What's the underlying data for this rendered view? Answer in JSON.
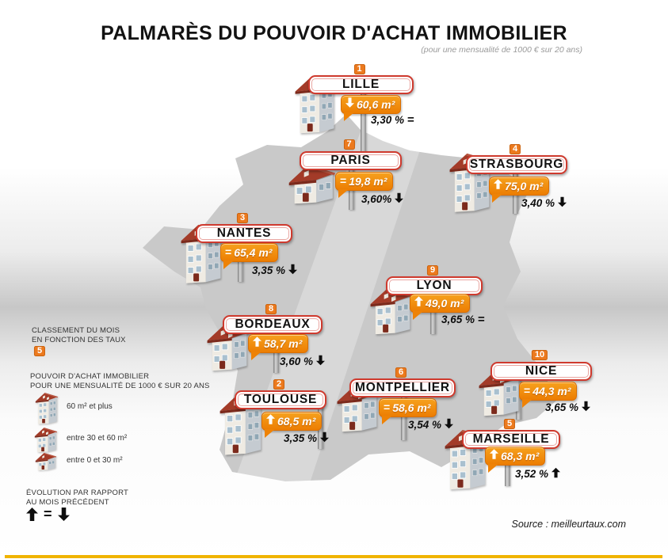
{
  "title": "PALMARÈS DU POUVOIR D'ACHAT IMMOBILIER",
  "subtitle": "(pour une mensualité de 1000 € sur 20 ans)",
  "source": "Source : meilleurtaux.com",
  "colors": {
    "accent_orange": "#ec7a1e",
    "sign_border_red": "#cf3a2e",
    "map_gray": "#c9c9c9",
    "bottom_bar_yellow": "#f0b400"
  },
  "legend": {
    "ranking_title_line1": "CLASSEMENT DU MOIS",
    "ranking_title_line2": "EN FONCTION DES TAUX",
    "ranking_badge": "5",
    "power_title_line1": "POUVOIR D'ACHAT IMMOBILIER",
    "power_title_line2": "POUR UNE MENSUALITÉ DE 1000 € SUR 20 ANS",
    "houses": [
      {
        "size": "large",
        "label": "60 m² et plus"
      },
      {
        "size": "medium",
        "label": "entre 30 et 60 m²"
      },
      {
        "size": "small",
        "label": "entre 0 et 30 m²"
      }
    ],
    "evolution_title_line1": "ÉVOLUTION PAR RAPPORT",
    "evolution_title_line2": "AU MOIS PRÉCÉDENT",
    "evolution_symbols": [
      "up",
      "eq",
      "down"
    ]
  },
  "cities": [
    {
      "id": "lille",
      "rank": "1",
      "name": "LILLE",
      "area_trend": "down",
      "area": "60,6 m²",
      "rate": "3,30 %",
      "rate_trend": "eq",
      "house": "large"
    },
    {
      "id": "paris",
      "rank": "7",
      "name": "PARIS",
      "area_trend": "eq",
      "area": "19,8 m²",
      "rate": "3,60%",
      "rate_trend": "down",
      "house": "small"
    },
    {
      "id": "strasbourg",
      "rank": "4",
      "name": "STRASBOURG",
      "area_trend": "up",
      "area": "75,0 m²",
      "rate": "3,40 %",
      "rate_trend": "down",
      "house": "large"
    },
    {
      "id": "nantes",
      "rank": "3",
      "name": "NANTES",
      "area_trend": "eq",
      "area": "65,4 m²",
      "rate": "3,35 %",
      "rate_trend": "down",
      "house": "large"
    },
    {
      "id": "lyon",
      "rank": "9",
      "name": "LYON",
      "area_trend": "up",
      "area": "49,0 m²",
      "rate": "3,65 %",
      "rate_trend": "eq",
      "house": "medium"
    },
    {
      "id": "bordeaux",
      "rank": "8",
      "name": "BORDEAUX",
      "area_trend": "up",
      "area": "58,7 m²",
      "rate": "3,60 %",
      "rate_trend": "down",
      "house": "medium"
    },
    {
      "id": "toulouse",
      "rank": "2",
      "name": "TOULOUSE",
      "area_trend": "up",
      "area": "68,5 m²",
      "rate": "3,35 %",
      "rate_trend": "down",
      "house": "large"
    },
    {
      "id": "montpellier",
      "rank": "6",
      "name": "MONTPELLIER",
      "area_trend": "eq",
      "area": "58,6 m²",
      "rate": "3,54 %",
      "rate_trend": "down",
      "house": "medium"
    },
    {
      "id": "nice",
      "rank": "10",
      "name": "NICE",
      "area_trend": "eq",
      "area": "44,3 m²",
      "rate": "3,65 %",
      "rate_trend": "down",
      "house": "medium"
    },
    {
      "id": "marseille",
      "rank": "5",
      "name": "MARSEILLE",
      "area_trend": "up",
      "area": "68,3 m²",
      "rate": "3,52 %",
      "rate_trend": "up",
      "house": "large"
    }
  ],
  "chart_data": {
    "type": "table",
    "title": "Palmarès du pouvoir d'achat immobilier (mensualité 1000 € sur 20 ans)",
    "columns": [
      "rang",
      "ville",
      "surface_m2",
      "evolution_surface",
      "taux_pct",
      "evolution_taux"
    ],
    "rows": [
      [
        1,
        "Lille",
        60.6,
        "baisse",
        3.3,
        "stable"
      ],
      [
        2,
        "Toulouse",
        68.5,
        "hausse",
        3.35,
        "baisse"
      ],
      [
        3,
        "Nantes",
        65.4,
        "stable",
        3.35,
        "baisse"
      ],
      [
        4,
        "Strasbourg",
        75.0,
        "hausse",
        3.4,
        "baisse"
      ],
      [
        5,
        "Marseille",
        68.3,
        "hausse",
        3.52,
        "hausse"
      ],
      [
        6,
        "Montpellier",
        58.6,
        "stable",
        3.54,
        "baisse"
      ],
      [
        7,
        "Paris",
        19.8,
        "stable",
        3.6,
        "baisse"
      ],
      [
        8,
        "Bordeaux",
        58.7,
        "hausse",
        3.6,
        "baisse"
      ],
      [
        9,
        "Lyon",
        49.0,
        "hausse",
        3.65,
        "stable"
      ],
      [
        10,
        "Nice",
        44.3,
        "stable",
        3.65,
        "baisse"
      ]
    ]
  }
}
